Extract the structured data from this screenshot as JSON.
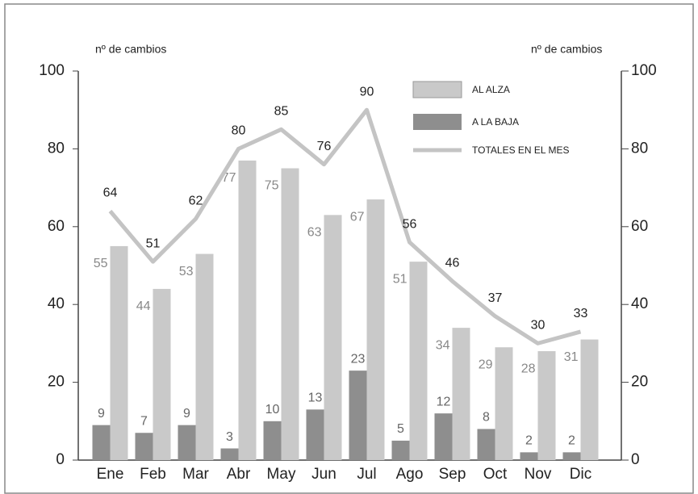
{
  "chart_data": {
    "type": "bar",
    "y_label": "nº de cambios",
    "y2_label": "nº de cambios",
    "categories": [
      "Ene",
      "Feb",
      "Mar",
      "Abr",
      "May",
      "Jun",
      "Jul",
      "Ago",
      "Sep",
      "Oct",
      "Nov",
      "Dic"
    ],
    "series": [
      {
        "name": "AL ALZA",
        "color": "#c9c9c9",
        "values": [
          55,
          44,
          53,
          77,
          75,
          63,
          67,
          51,
          34,
          29,
          28,
          31
        ]
      },
      {
        "name": "A LA BAJA",
        "color": "#8e8e8e",
        "values": [
          9,
          7,
          9,
          3,
          10,
          13,
          23,
          5,
          12,
          8,
          2,
          2
        ]
      },
      {
        "name": "TOTALES EN EL MES",
        "type": "line",
        "axis": "y2",
        "color": "#c4c4c4",
        "values": [
          64,
          51,
          62,
          80,
          85,
          76,
          90,
          56,
          46,
          37,
          30,
          33
        ]
      }
    ],
    "ylim": [
      0,
      100
    ],
    "yticks": [
      0,
      20,
      40,
      60,
      80,
      100
    ],
    "y2lim": [
      0,
      100
    ],
    "y2ticks": [
      0,
      20,
      40,
      60,
      80,
      100
    ],
    "legend": "top-right"
  }
}
